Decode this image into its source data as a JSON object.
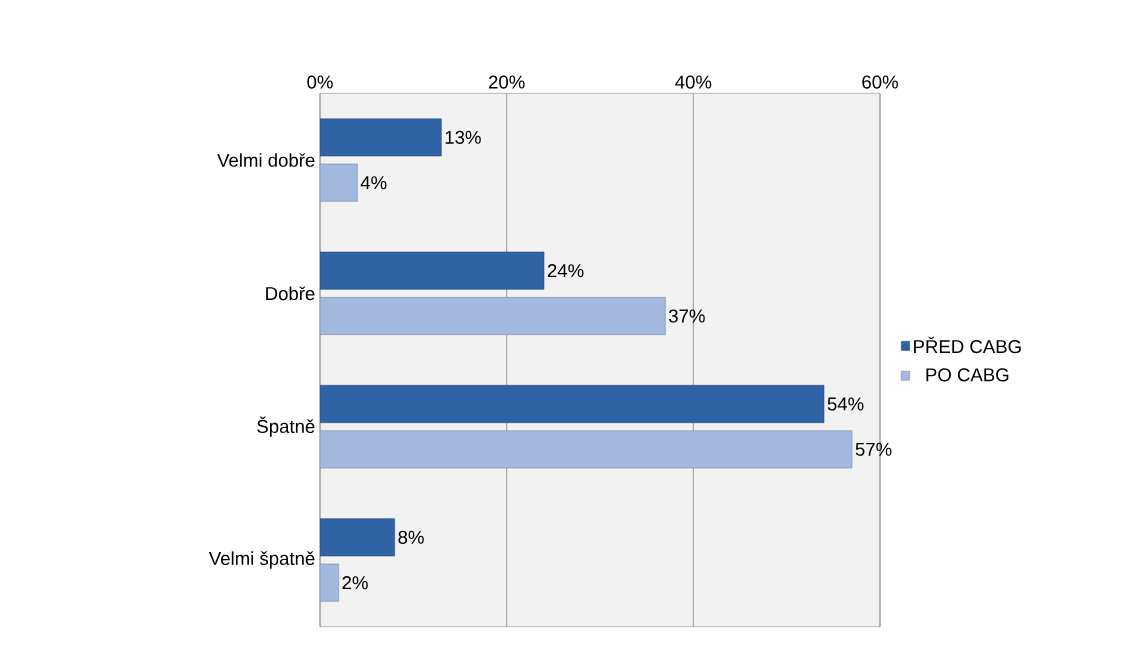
{
  "chart_data": {
    "type": "bar",
    "orientation": "horizontal",
    "categories": [
      "Velmi dobře",
      "Dobře",
      "Špatně",
      "Velmi špatně"
    ],
    "series": [
      {
        "name": "PŘED CABG",
        "color": "#2f63a6",
        "values": [
          13,
          24,
          54,
          8
        ],
        "value_labels": [
          "13%",
          "24%",
          "54%",
          "8%"
        ]
      },
      {
        "name": "PO CABG",
        "color": "#a3b9e0",
        "values": [
          4,
          37,
          57,
          2
        ],
        "value_labels": [
          "4%",
          "37%",
          "57%",
          "2%"
        ]
      }
    ],
    "xlim": [
      0,
      60
    ],
    "xticks": [
      {
        "value": 0,
        "label": "0%"
      },
      {
        "value": 20,
        "label": "20%"
      },
      {
        "value": 40,
        "label": "40%"
      },
      {
        "value": 60,
        "label": "60%"
      }
    ],
    "grid": "x",
    "legend": "right"
  }
}
